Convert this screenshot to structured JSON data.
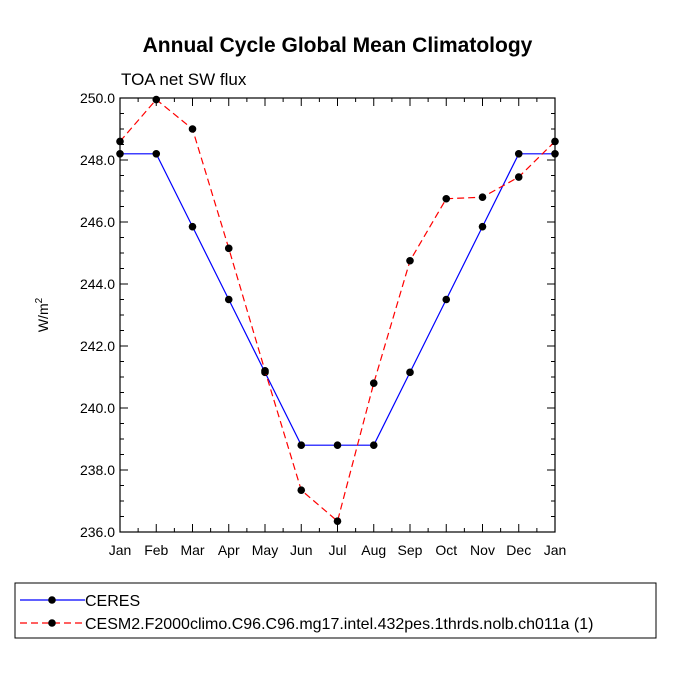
{
  "chart_data": {
    "type": "line",
    "title": "Annual Cycle Global Mean Climatology",
    "subtitle": "TOA net SW flux",
    "xlabel": "",
    "ylabel": "W/m",
    "ylabel_superscript": "2",
    "categories": [
      "Jan",
      "Feb",
      "Mar",
      "Apr",
      "May",
      "Jun",
      "Jul",
      "Aug",
      "Sep",
      "Oct",
      "Nov",
      "Dec",
      "Jan"
    ],
    "ylim": [
      236.0,
      250.0
    ],
    "yticks": [
      "236.0",
      "238.0",
      "240.0",
      "242.0",
      "244.0",
      "246.0",
      "248.0",
      "250.0"
    ],
    "grid": false,
    "legend_position": "bottom",
    "series": [
      {
        "name": "CERES",
        "color": "#0000ff",
        "style": "solid",
        "values": [
          248.2,
          248.2,
          245.85,
          243.5,
          241.15,
          238.8,
          238.8,
          238.8,
          241.15,
          243.5,
          245.85,
          248.2,
          248.2
        ]
      },
      {
        "name": "CESM2.F2000climo.C96.C96.mg17.intel.432pes.1thrds.nolb.ch011a (1)",
        "color": "#ff0000",
        "style": "dashed",
        "values": [
          248.6,
          249.95,
          249.0,
          245.15,
          241.2,
          237.35,
          236.35,
          240.8,
          244.75,
          246.75,
          246.8,
          247.45,
          248.6
        ]
      }
    ]
  }
}
